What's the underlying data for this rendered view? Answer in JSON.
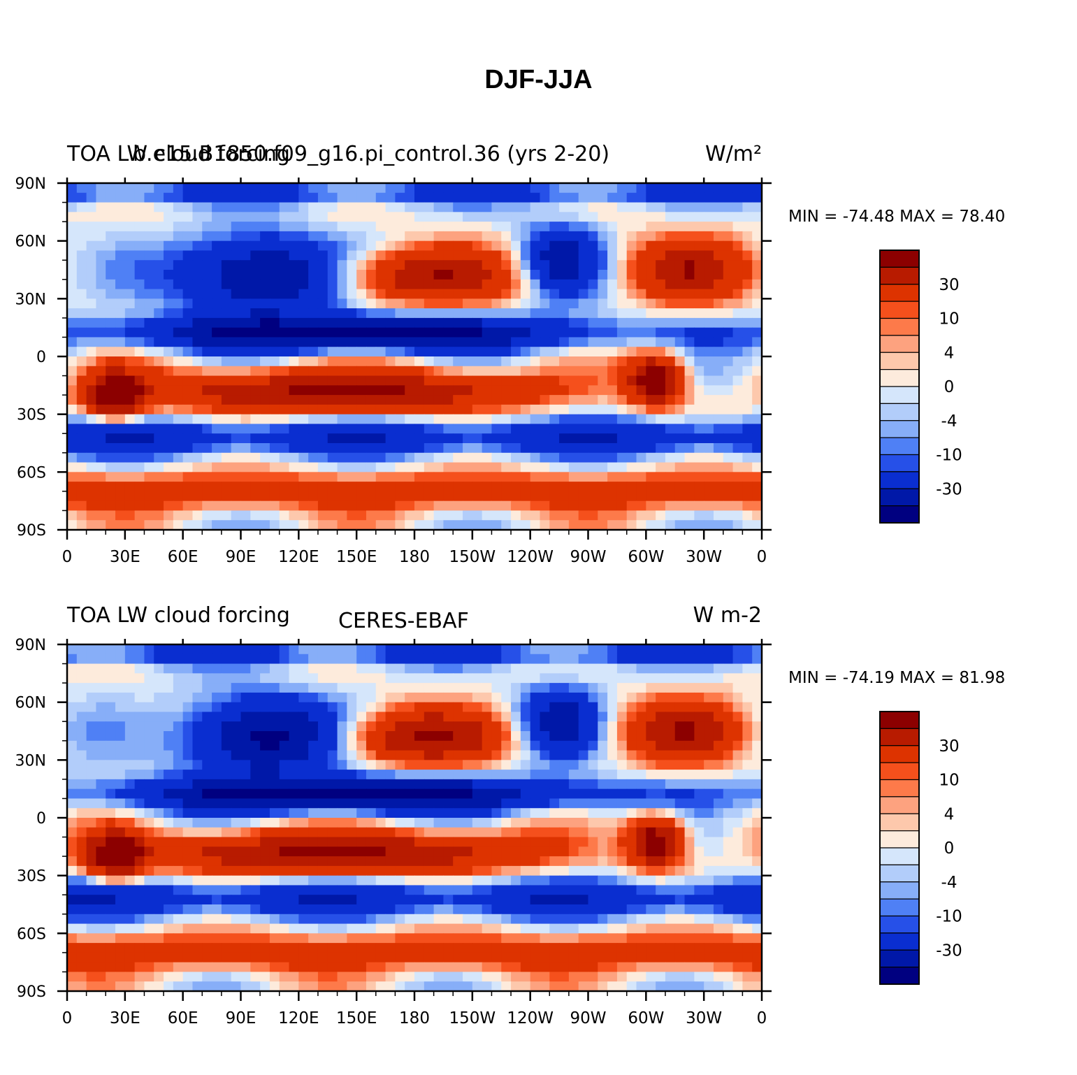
{
  "figure": {
    "title": "DJF-JJA"
  },
  "panels": [
    {
      "left_title": "TOA LW cloud forcing",
      "center_title": "b.e15.B1850.f09_g16.pi_control.36 (yrs 2-20)",
      "right_title": "W/m²",
      "stats": "MIN = -74.48 MAX =   78.40"
    },
    {
      "left_title": "TOA LW cloud forcing",
      "center_title": "CERES-EBAF",
      "right_title": "W m-2",
      "stats": "MIN = -74.19 MAX =   81.98"
    }
  ],
  "map": {
    "lat_labels": [
      "90N",
      "60N",
      "30N",
      "0",
      "30S",
      "60S",
      "90S"
    ],
    "lon_labels": [
      "0",
      "30E",
      "60E",
      "90E",
      "120E",
      "150E",
      "180",
      "150W",
      "120W",
      "90W",
      "60W",
      "30W",
      "0"
    ]
  },
  "colorbar": {
    "tick_labels": [
      "30",
      "10",
      "4",
      "0",
      "-4",
      "-10",
      "-30"
    ],
    "colors": [
      "#8c0000",
      "#b81b00",
      "#dd3300",
      "#f5501c",
      "#fd7a4a",
      "#fda27f",
      "#fdc8ac",
      "#fdebdc",
      "#d5e6fb",
      "#b2cdfa",
      "#87aef8",
      "#4f80f5",
      "#2650e8",
      "#0a2ed0",
      "#0018a8",
      "#000080"
    ]
  },
  "chart_data": {
    "type": "heatmap",
    "title": "DJF-JJA",
    "panels": [
      {
        "subtitle": "b.e15.B1850.f09_g16.pi_control.36 (yrs 2-20)",
        "variable": "TOA LW cloud forcing",
        "units": "W/m²",
        "min": -74.48,
        "max": 78.4
      },
      {
        "subtitle": "CERES-EBAF",
        "variable": "TOA LW cloud forcing",
        "units": "W m-2",
        "min": -74.19,
        "max": 81.98
      }
    ],
    "x_range": [
      0,
      360
    ],
    "y_range": [
      -90,
      90
    ],
    "color_levels": [
      -40,
      -30,
      -20,
      -10,
      -8,
      -6,
      -4,
      -2,
      0,
      2,
      4,
      6,
      8,
      10,
      20,
      30,
      40
    ]
  }
}
